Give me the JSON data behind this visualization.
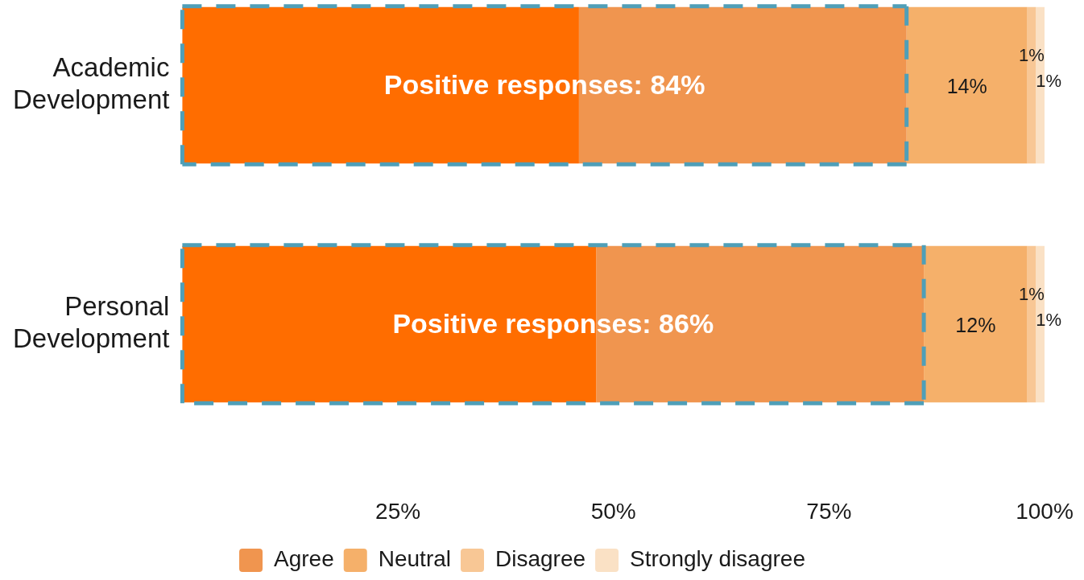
{
  "chart_data": {
    "type": "bar",
    "orientation": "horizontal",
    "stacked": true,
    "categories": [
      "Academic Development",
      "Personal Development"
    ],
    "series": [
      {
        "color": "#ff6d00",
        "values": [
          46,
          48
        ]
      },
      {
        "name": "Agree",
        "color": "#f0954f",
        "values": [
          38,
          38
        ]
      },
      {
        "name": "Neutral",
        "color": "#f5b06a",
        "values": [
          14,
          12
        ],
        "value_labels": [
          "14%",
          "12%"
        ]
      },
      {
        "name": "Disagree",
        "color": "#f8c795",
        "values": [
          1,
          1
        ],
        "value_labels": [
          "1%",
          "1%"
        ]
      },
      {
        "name": "Strongly disagree",
        "color": "#fae1c5",
        "values": [
          1,
          1
        ],
        "value_labels": [
          "1%",
          "1%"
        ]
      }
    ],
    "xlim": [
      0,
      100
    ],
    "xticks": [
      {
        "value": 25,
        "label": "25%"
      },
      {
        "value": 50,
        "label": "50%"
      },
      {
        "value": 75,
        "label": "75%"
      },
      {
        "value": 100,
        "label": "100%"
      }
    ],
    "legend": "bottom",
    "annotations": [
      "Positive responses: 84%",
      "Positive responses: 86%"
    ]
  }
}
